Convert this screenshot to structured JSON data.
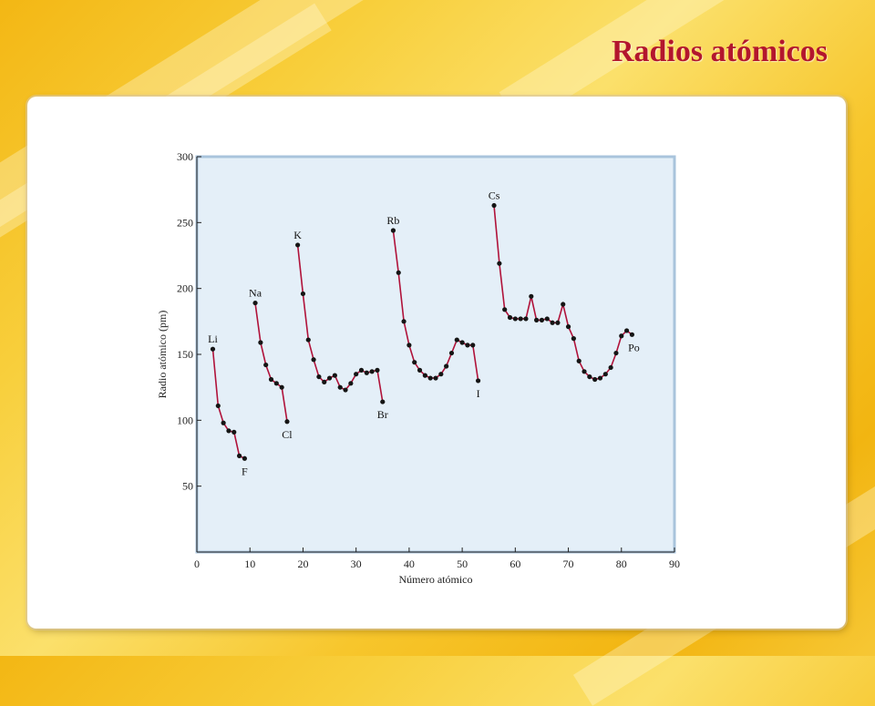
{
  "slide": {
    "title": "Radios atómicos"
  },
  "chart_data": {
    "type": "line",
    "title": "",
    "xlabel": "Número atómico",
    "ylabel": "Radio atómico (pm)",
    "xlim": [
      0,
      90
    ],
    "ylim": [
      0,
      300
    ],
    "xticks": [
      0,
      10,
      20,
      30,
      40,
      50,
      60,
      70,
      80,
      90
    ],
    "yticks": [
      50,
      100,
      150,
      200,
      250,
      300
    ],
    "grid": false,
    "colors": {
      "line": "#b0123a",
      "marker": "#151515",
      "plot_background": "#e4eff8",
      "plot_border": "#a9c4dc"
    },
    "series": [
      {
        "points": [
          [
            3,
            154
          ],
          [
            4,
            111
          ],
          [
            5,
            98
          ],
          [
            6,
            92
          ],
          [
            7,
            91
          ],
          [
            8,
            73
          ],
          [
            9,
            71
          ]
        ]
      },
      {
        "points": [
          [
            11,
            189
          ],
          [
            12,
            159
          ],
          [
            13,
            142
          ],
          [
            14,
            131
          ],
          [
            15,
            128
          ],
          [
            16,
            125
          ],
          [
            17,
            99
          ]
        ]
      },
      {
        "points": [
          [
            19,
            233
          ],
          [
            20,
            196
          ],
          [
            21,
            161
          ],
          [
            22,
            146
          ],
          [
            23,
            133
          ],
          [
            24,
            129
          ],
          [
            25,
            132
          ],
          [
            26,
            134
          ],
          [
            27,
            125
          ],
          [
            28,
            123
          ],
          [
            29,
            128
          ],
          [
            30,
            135
          ],
          [
            31,
            138
          ],
          [
            32,
            136
          ],
          [
            33,
            137
          ],
          [
            34,
            138
          ],
          [
            35,
            114
          ]
        ]
      },
      {
        "points": [
          [
            37,
            244
          ],
          [
            38,
            212
          ],
          [
            39,
            175
          ],
          [
            40,
            157
          ],
          [
            41,
            144
          ],
          [
            42,
            138
          ],
          [
            43,
            134
          ],
          [
            44,
            132
          ],
          [
            45,
            132
          ],
          [
            46,
            135
          ],
          [
            47,
            141
          ],
          [
            48,
            151
          ],
          [
            49,
            161
          ],
          [
            50,
            159
          ],
          [
            51,
            157
          ],
          [
            52,
            157
          ],
          [
            53,
            130
          ]
        ]
      },
      {
        "points": [
          [
            56,
            263
          ],
          [
            57,
            219
          ],
          [
            58,
            184
          ],
          [
            59,
            178
          ],
          [
            60,
            177
          ],
          [
            61,
            177
          ],
          [
            62,
            177
          ],
          [
            63,
            194
          ],
          [
            64,
            176
          ],
          [
            65,
            176
          ],
          [
            66,
            177
          ],
          [
            67,
            174
          ],
          [
            68,
            174
          ],
          [
            69,
            188
          ],
          [
            70,
            171
          ],
          [
            71,
            162
          ],
          [
            72,
            145
          ],
          [
            73,
            137
          ],
          [
            74,
            133
          ],
          [
            75,
            131
          ],
          [
            76,
            132
          ],
          [
            77,
            135
          ],
          [
            78,
            140
          ],
          [
            79,
            151
          ],
          [
            80,
            164
          ],
          [
            81,
            168
          ],
          [
            82,
            165
          ]
        ]
      }
    ],
    "annotations": [
      {
        "text": "Li",
        "x": 3,
        "y": 154,
        "pos": "above"
      },
      {
        "text": "F",
        "x": 9,
        "y": 71,
        "pos": "below"
      },
      {
        "text": "Na",
        "x": 11,
        "y": 189,
        "pos": "above"
      },
      {
        "text": "Cl",
        "x": 17,
        "y": 99,
        "pos": "below"
      },
      {
        "text": "K",
        "x": 19,
        "y": 233,
        "pos": "above"
      },
      {
        "text": "Br",
        "x": 35,
        "y": 114,
        "pos": "below"
      },
      {
        "text": "Rb",
        "x": 37,
        "y": 244,
        "pos": "above"
      },
      {
        "text": "I",
        "x": 53,
        "y": 130,
        "pos": "below"
      },
      {
        "text": "Cs",
        "x": 56,
        "y": 263,
        "pos": "above"
      },
      {
        "text": "Po",
        "x": 82,
        "y": 165,
        "pos": "below-right"
      }
    ]
  }
}
